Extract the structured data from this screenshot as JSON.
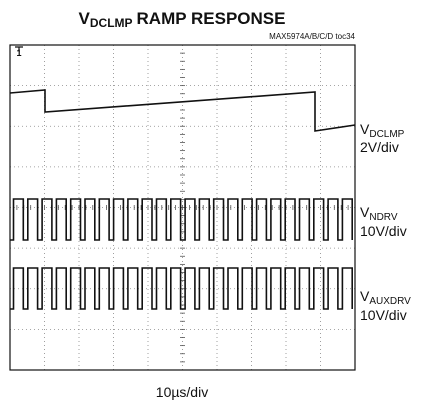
{
  "title": {
    "symbol": "V",
    "subscript": "DCLMP",
    "text": "RAMP RESPONSE"
  },
  "figure_id": "MAX5974A/B/C/D toc34",
  "channel_marker": "1",
  "channels": [
    {
      "symbol": "V",
      "subscript": "DCLMP",
      "scale": "2V/div"
    },
    {
      "symbol": "V",
      "subscript": "NDRV",
      "scale": "10V/div"
    },
    {
      "symbol": "V",
      "subscript": "AUXDRV",
      "scale": "10V/div"
    }
  ],
  "timebase": "10µs/div"
}
